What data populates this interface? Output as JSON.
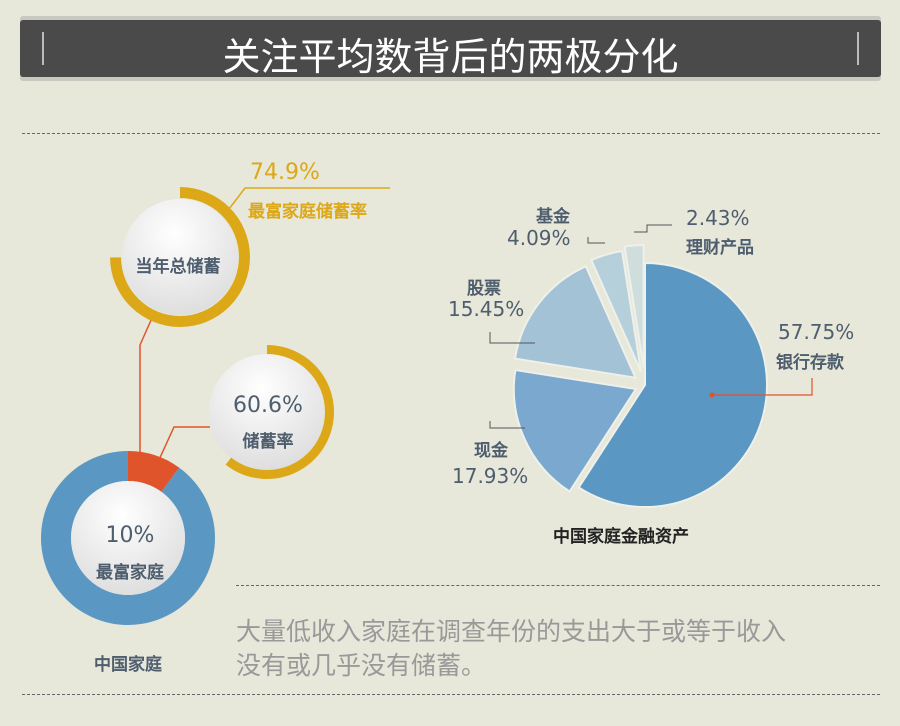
{
  "header": {
    "title": "关注平均数背后的两极分化"
  },
  "footnote": {
    "line1": "大量低收入家庭在调查年份的支出大于或等于收入",
    "line2": "没有或几乎没有储蓄。"
  },
  "colors": {
    "gold": "#dca818",
    "blue": "#5a97c3",
    "orange": "#e0542b",
    "text": "#4e5e6e"
  },
  "chart_data": [
    {
      "type": "pie",
      "subtype": "donut",
      "center_label": "当年总储蓄",
      "values": [
        74.9
      ],
      "value_label": "74.9%",
      "annotation": "最富家庭储蓄率",
      "color": "#dca818"
    },
    {
      "type": "pie",
      "subtype": "donut",
      "values": [
        60.6
      ],
      "value_label": "60.6%",
      "center_label": "储蓄率",
      "color": "#dca818"
    },
    {
      "type": "pie",
      "subtype": "donut",
      "values": [
        10,
        90
      ],
      "value_label": "10%",
      "center_label": "最富家庭",
      "title": "中国家庭",
      "colors": [
        "#e0542b",
        "#5a97c3"
      ]
    },
    {
      "type": "pie",
      "title": "中国家庭金融资产",
      "slices": [
        {
          "name": "银行存款",
          "value": 57.75,
          "label": "57.75%",
          "color": "#5a97c3"
        },
        {
          "name": "现金",
          "value": 17.93,
          "label": "17.93%",
          "color": "#7aa8cf"
        },
        {
          "name": "股票",
          "value": 15.45,
          "label": "15.45%",
          "color": "#a3c2d6"
        },
        {
          "name": "基金",
          "value": 4.09,
          "label": "4.09%",
          "color": "#b5cfdb"
        },
        {
          "name": "理财产品",
          "value": 2.43,
          "label": "2.43%",
          "color": "#cfdedd"
        }
      ]
    }
  ]
}
